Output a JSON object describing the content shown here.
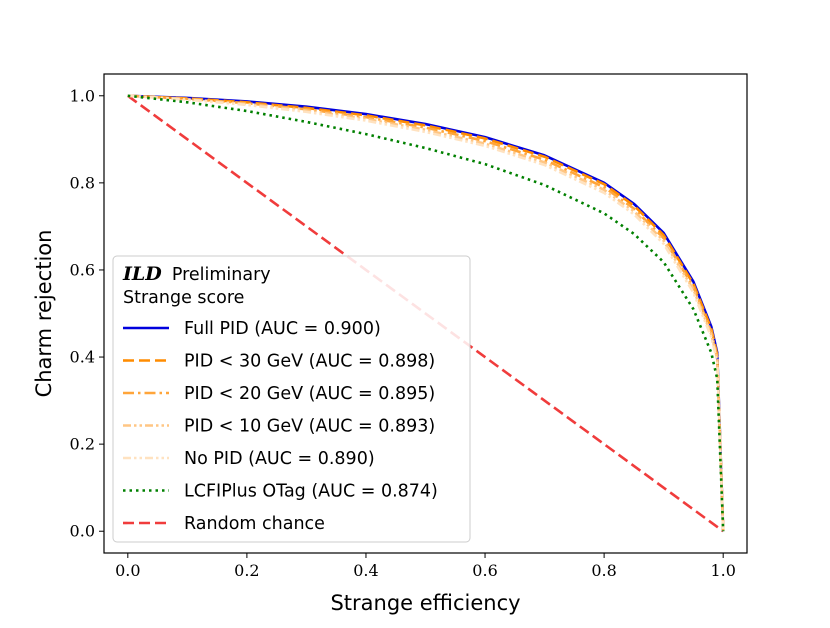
{
  "chart_data": {
    "type": "line",
    "title": "",
    "xlabel": "Strange efficiency",
    "ylabel": "Charm rejection",
    "xlim": [
      -0.04,
      1.04
    ],
    "ylim": [
      -0.05,
      1.05
    ],
    "xticks": [
      0.0,
      0.2,
      0.4,
      0.6,
      0.8,
      1.0
    ],
    "yticks": [
      0.0,
      0.2,
      0.4,
      0.6,
      0.8,
      1.0
    ],
    "xtick_labels": [
      "0.0",
      "0.2",
      "0.4",
      "0.6",
      "0.8",
      "1.0"
    ],
    "ytick_labels": [
      "0.0",
      "0.2",
      "0.4",
      "0.6",
      "0.8",
      "1.0"
    ],
    "grid": false,
    "legend": {
      "placement": "lower-left",
      "title_bold": "ILD",
      "title_rest": "Preliminary",
      "subtitle": "Strange score"
    },
    "series": [
      {
        "name": "Full PID (AUC = 0.900)",
        "color": "#0000dd",
        "dash": "solid",
        "order": 1,
        "x": [
          0,
          0.1,
          0.2,
          0.3,
          0.4,
          0.5,
          0.6,
          0.7,
          0.8,
          0.85,
          0.9,
          0.95,
          0.98,
          0.99,
          1.0
        ],
        "y": [
          1.0,
          0.995,
          0.987,
          0.975,
          0.958,
          0.935,
          0.905,
          0.863,
          0.8,
          0.752,
          0.685,
          0.573,
          0.47,
          0.41,
          0.0
        ]
      },
      {
        "name": "PID < 30 GeV (AUC = 0.898)",
        "color": "#ff8c00",
        "dash": "dashed",
        "order": 2,
        "x": [
          0,
          0.1,
          0.2,
          0.3,
          0.4,
          0.5,
          0.6,
          0.7,
          0.8,
          0.85,
          0.9,
          0.95,
          0.98,
          0.99,
          1.0
        ],
        "y": [
          1.0,
          0.994,
          0.985,
          0.972,
          0.955,
          0.932,
          0.902,
          0.86,
          0.797,
          0.748,
          0.68,
          0.568,
          0.465,
          0.405,
          0.0
        ]
      },
      {
        "name": "PID < 20 GeV (AUC = 0.895)",
        "color": "#ffa53a",
        "dash": "dashdot",
        "order": 3,
        "x": [
          0,
          0.1,
          0.2,
          0.3,
          0.4,
          0.5,
          0.6,
          0.7,
          0.8,
          0.85,
          0.9,
          0.95,
          0.98,
          0.99,
          1.0
        ],
        "y": [
          1.0,
          0.993,
          0.983,
          0.969,
          0.951,
          0.927,
          0.896,
          0.853,
          0.79,
          0.741,
          0.673,
          0.561,
          0.458,
          0.4,
          0.0
        ]
      },
      {
        "name": "PID < 10 GeV (AUC = 0.893)",
        "color": "#ffc684",
        "dash": "dashdotdot",
        "order": 4,
        "x": [
          0,
          0.1,
          0.2,
          0.3,
          0.4,
          0.5,
          0.6,
          0.7,
          0.8,
          0.85,
          0.9,
          0.95,
          0.98,
          0.99,
          1.0
        ],
        "y": [
          1.0,
          0.992,
          0.981,
          0.966,
          0.947,
          0.922,
          0.89,
          0.847,
          0.784,
          0.735,
          0.667,
          0.555,
          0.452,
          0.395,
          0.0
        ]
      },
      {
        "name": "No PID (AUC = 0.890)",
        "color": "#ffe2c0",
        "dash": "dashdotdot",
        "order": 5,
        "x": [
          0,
          0.1,
          0.2,
          0.3,
          0.4,
          0.5,
          0.6,
          0.7,
          0.8,
          0.85,
          0.9,
          0.95,
          0.98,
          0.99,
          1.0
        ],
        "y": [
          1.0,
          0.991,
          0.979,
          0.963,
          0.943,
          0.917,
          0.885,
          0.841,
          0.777,
          0.728,
          0.66,
          0.548,
          0.446,
          0.39,
          0.0
        ]
      },
      {
        "name": "LCFIPlus OTag (AUC = 0.874)",
        "color": "#008000",
        "dash": "dotted",
        "order": 6,
        "x": [
          0,
          0.1,
          0.2,
          0.3,
          0.4,
          0.5,
          0.6,
          0.7,
          0.8,
          0.85,
          0.9,
          0.95,
          0.98,
          0.99,
          1.0
        ],
        "y": [
          1.0,
          0.985,
          0.965,
          0.94,
          0.912,
          0.88,
          0.843,
          0.795,
          0.73,
          0.683,
          0.618,
          0.51,
          0.41,
          0.35,
          0.0
        ]
      },
      {
        "name": "Random chance",
        "color": "#f03c3c",
        "dash": "dashed",
        "order": 0,
        "x": [
          0,
          1
        ],
        "y": [
          1,
          0
        ]
      }
    ]
  }
}
